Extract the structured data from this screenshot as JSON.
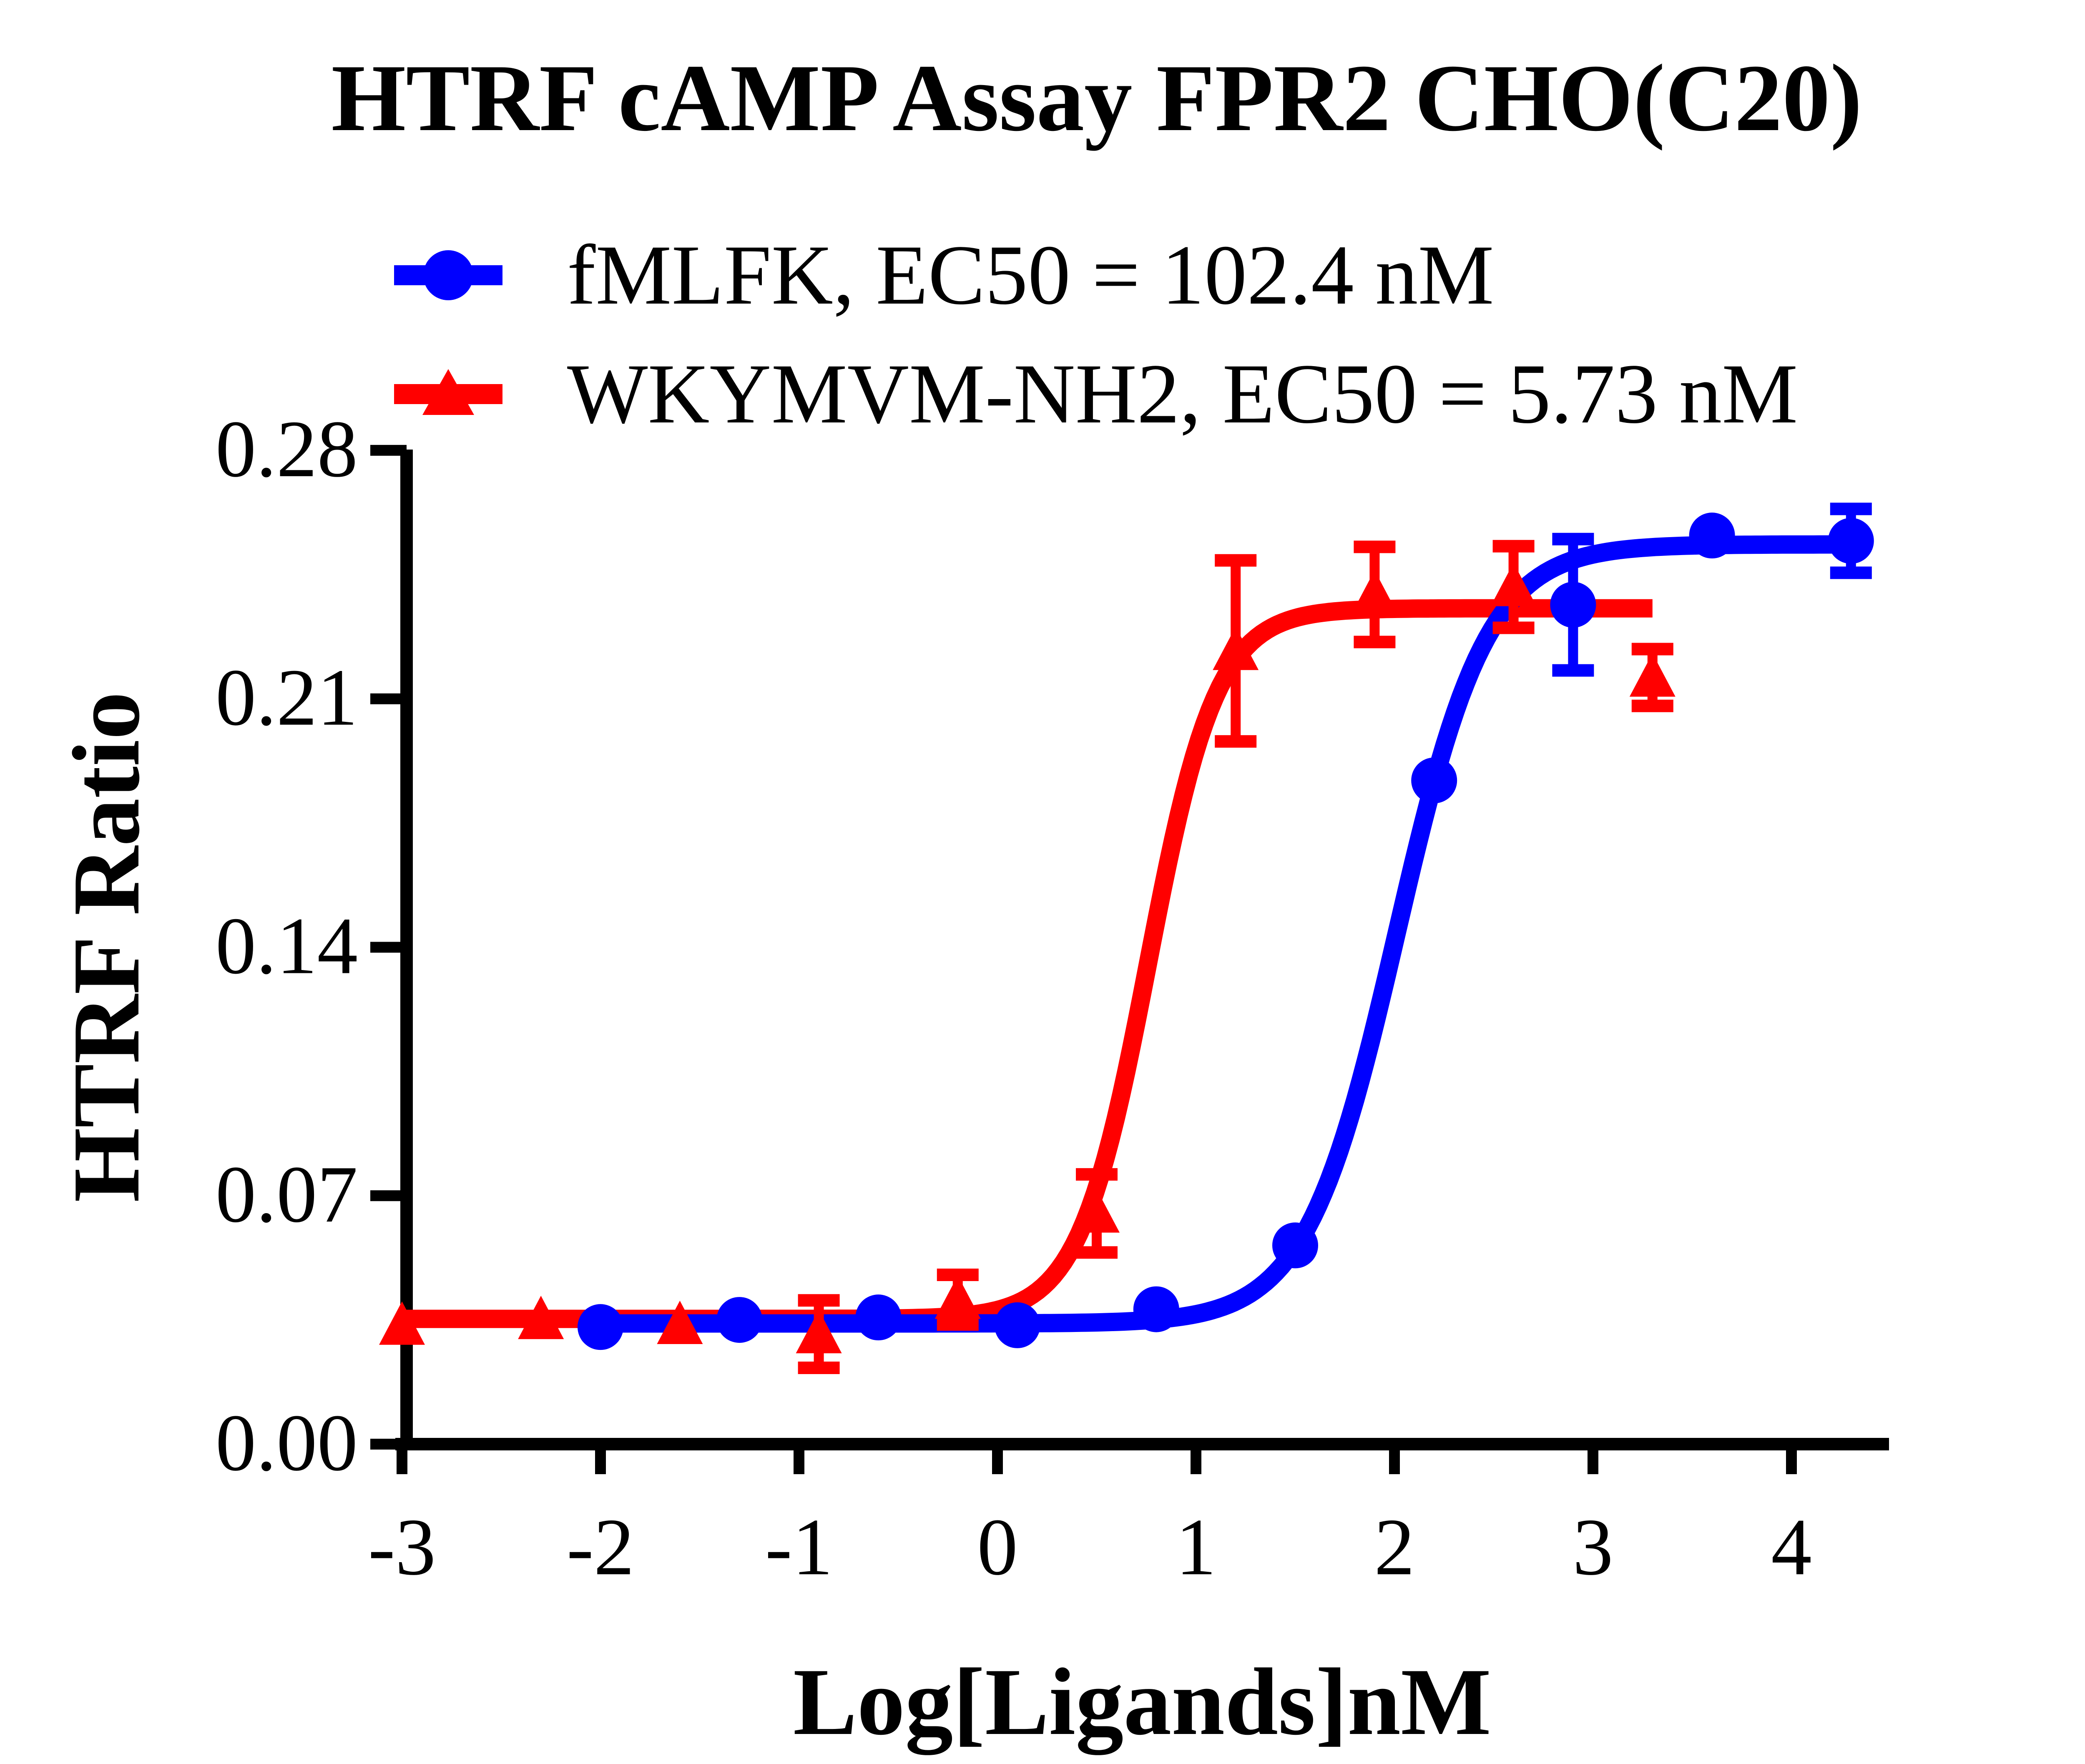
{
  "chart_data": {
    "type": "scatter",
    "title": "HTRF cAMP Assay FPR2 CHO(C20)",
    "xlabel": "Log[Ligands]nM",
    "ylabel": "HTRF Ratio",
    "xlim": [
      -3.03,
      4.49
    ],
    "ylim": [
      0.0,
      0.28
    ],
    "x_ticks": [
      -3,
      -2,
      -1,
      0,
      1,
      2,
      3,
      4
    ],
    "x_tick_labels": [
      "-3",
      "-2",
      "-1",
      "0",
      "1",
      "2",
      "3",
      "4"
    ],
    "y_ticks": [
      0.0,
      0.07,
      0.14,
      0.21,
      0.28
    ],
    "y_tick_labels": [
      "0.00",
      "0.07",
      "0.14",
      "0.21",
      "0.28"
    ],
    "grid": false,
    "legend_position": "top-left",
    "series": [
      {
        "name": "fMLFK",
        "legend_label": "fMLFK,  EC50 = 102.4 nM",
        "ec50_nM": 102.4,
        "color": "#0000FF",
        "marker": "circle",
        "points": [
          {
            "x": -2.0,
            "y": 0.033,
            "err": null
          },
          {
            "x": -1.3,
            "y": 0.035,
            "err": null
          },
          {
            "x": -0.6,
            "y": 0.0357,
            "err": null
          },
          {
            "x": 0.1,
            "y": 0.0335,
            "err": null
          },
          {
            "x": 0.8,
            "y": 0.038,
            "err": null
          },
          {
            "x": 1.5,
            "y": 0.056,
            "err": null
          },
          {
            "x": 2.2,
            "y": 0.187,
            "err": null
          },
          {
            "x": 2.9,
            "y": 0.2365,
            "err": 0.0185
          },
          {
            "x": 3.6,
            "y": 0.256,
            "err": null
          },
          {
            "x": 4.3,
            "y": 0.2545,
            "err": 0.009
          }
        ],
        "fit": {
          "bottom": 0.034,
          "top": 0.2535,
          "logEC50": 2.0103,
          "hill": 1.9,
          "x_start": -2.02,
          "x_end": 4.35
        }
      },
      {
        "name": "WKYMVM-NH2",
        "legend_label": "WKYMVM-NH2,  EC50 = 5.73 nM",
        "ec50_nM": 5.73,
        "color": "#FF0000",
        "marker": "triangle",
        "points": [
          {
            "x": -3.0,
            "y": 0.0334,
            "err": null
          },
          {
            "x": -2.3,
            "y": 0.035,
            "err": null
          },
          {
            "x": -1.6,
            "y": 0.0336,
            "err": null
          },
          {
            "x": -0.9,
            "y": 0.031,
            "err": 0.0095
          },
          {
            "x": -0.2,
            "y": 0.0407,
            "err": 0.007
          },
          {
            "x": 0.5,
            "y": 0.065,
            "err": 0.011
          },
          {
            "x": 1.2,
            "y": 0.2235,
            "err": 0.0255
          },
          {
            "x": 1.9,
            "y": 0.2394,
            "err": 0.0134
          },
          {
            "x": 2.6,
            "y": 0.2415,
            "err": 0.0115
          },
          {
            "x": 3.3,
            "y": 0.216,
            "err": 0.008
          }
        ],
        "fit": {
          "bottom": 0.0353,
          "top": 0.2355,
          "logEC50": 0.7582,
          "hill": 2.5,
          "x_start": -3.0,
          "x_end": 3.3
        }
      }
    ]
  }
}
